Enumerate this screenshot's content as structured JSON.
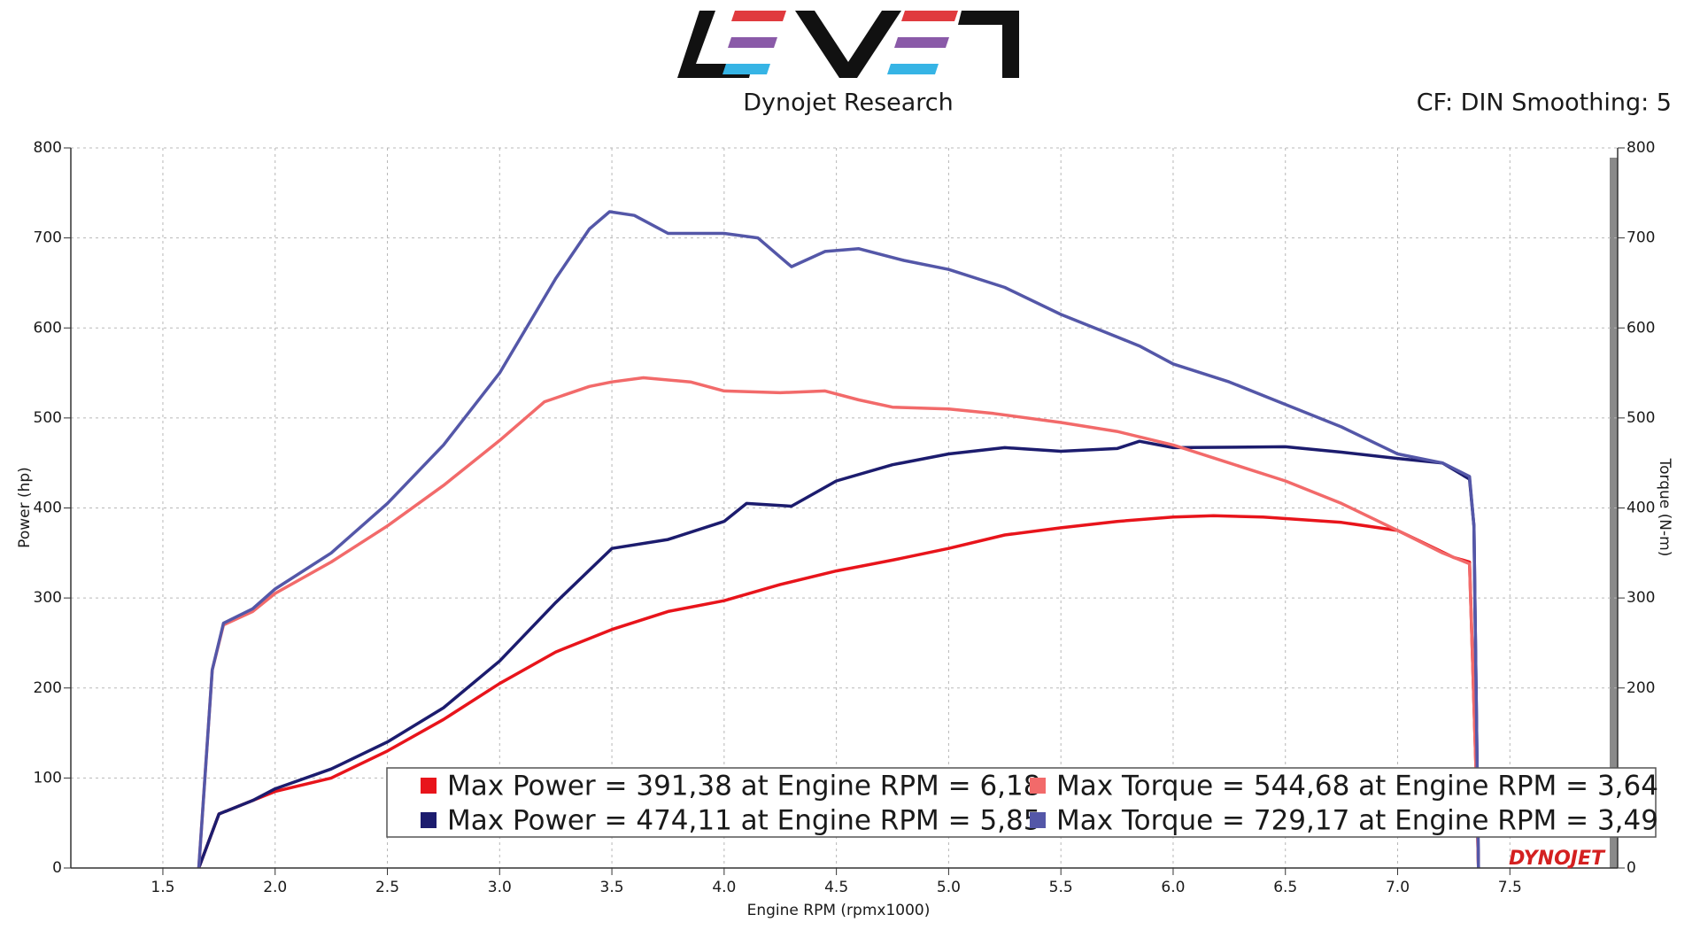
{
  "chart_data": {
    "type": "line",
    "title": "Dynojet Research",
    "subtitle": "CF: DIN Smoothing: 5",
    "watermark": "DYNOJET",
    "x_label": "Engine RPM (rpmx1000)",
    "y_label": "Power (hp)",
    "y2_label": "Torque (N-m)",
    "xlim": [
      1.09,
      7.98
    ],
    "ylim": [
      0,
      800
    ],
    "y2lim": [
      0,
      800
    ],
    "xticks": [
      1.5,
      {
        "value": 2,
        "label": "2.0"
      },
      2.5,
      {
        "value": 3,
        "label": "3.0"
      },
      3.5,
      {
        "value": 4,
        "label": "4.0"
      },
      4.5,
      {
        "value": 5,
        "label": "5.0"
      },
      5.5,
      {
        "value": 6,
        "label": "6.0"
      },
      6.5,
      {
        "value": 7,
        "label": "7.0"
      },
      7.5
    ],
    "yticks": [
      0,
      100,
      200,
      300,
      400,
      500,
      600,
      700,
      800
    ],
    "y2ticks": [
      0,
      100,
      200,
      300,
      400,
      500,
      600,
      700,
      800
    ],
    "grid": true,
    "series": [
      {
        "name": "Max Power = 391,38 at Engine RPM = 6,18",
        "color": "#e8141b",
        "x": [
          1.66,
          1.75,
          1.9,
          2.0,
          2.25,
          2.5,
          2.75,
          3.0,
          3.25,
          3.5,
          3.75,
          4.0,
          4.25,
          4.5,
          4.75,
          5.0,
          5.25,
          5.5,
          5.75,
          6.0,
          6.18,
          6.4,
          6.75,
          7.0,
          7.1,
          7.25,
          7.32,
          7.35,
          7.36
        ],
        "values": [
          0,
          60,
          75,
          85,
          100,
          130,
          165,
          205,
          240,
          265,
          285,
          297,
          315,
          330,
          342,
          355,
          370,
          378,
          385,
          390,
          391.38,
          390,
          384,
          375,
          363,
          345,
          340,
          100,
          0
        ]
      },
      {
        "name": "Max Power = 474,11 at Engine RPM = 5,85",
        "color": "#1c1c6e",
        "x": [
          1.66,
          1.75,
          1.9,
          2.0,
          2.25,
          2.5,
          2.75,
          3.0,
          3.25,
          3.5,
          3.75,
          4.0,
          4.1,
          4.3,
          4.5,
          4.75,
          5.0,
          5.25,
          5.5,
          5.75,
          5.85,
          6.0,
          6.5,
          6.75,
          7.0,
          7.2,
          7.32,
          7.34,
          7.36
        ],
        "values": [
          0,
          60,
          75,
          88,
          110,
          140,
          178,
          230,
          295,
          355,
          365,
          385,
          405,
          402,
          430,
          448,
          460,
          467,
          463,
          466,
          474.11,
          467,
          468,
          462,
          455,
          450,
          432,
          380,
          0
        ]
      },
      {
        "name": "Max Torque = 544,68 at Engine RPM = 3,64",
        "color": "#f26a6a",
        "axis": "y2",
        "x": [
          1.66,
          1.72,
          1.77,
          1.9,
          2.0,
          2.25,
          2.5,
          2.75,
          3.0,
          3.2,
          3.4,
          3.5,
          3.64,
          3.85,
          4.0,
          4.25,
          4.45,
          4.6,
          4.75,
          5.0,
          5.2,
          5.5,
          5.75,
          6.0,
          6.25,
          6.5,
          6.75,
          7.0,
          7.2,
          7.32,
          7.35,
          7.36
        ],
        "values": [
          0,
          220,
          270,
          285,
          305,
          340,
          380,
          425,
          475,
          518,
          535,
          540,
          544.68,
          540,
          530,
          528,
          530,
          520,
          512,
          510,
          505,
          495,
          485,
          470,
          450,
          430,
          405,
          375,
          350,
          338,
          100,
          0
        ]
      },
      {
        "name": "Max Torque = 729,17 at Engine RPM = 3,49",
        "color": "#5457a8",
        "axis": "y2",
        "x": [
          1.66,
          1.72,
          1.77,
          1.9,
          2.0,
          2.25,
          2.5,
          2.75,
          3.0,
          3.25,
          3.4,
          3.49,
          3.6,
          3.75,
          4.0,
          4.15,
          4.3,
          4.45,
          4.6,
          4.8,
          5.0,
          5.25,
          5.5,
          5.75,
          5.85,
          6.0,
          6.25,
          6.5,
          6.75,
          7.0,
          7.2,
          7.32,
          7.34,
          7.36
        ],
        "values": [
          0,
          220,
          272,
          288,
          310,
          350,
          405,
          470,
          550,
          655,
          710,
          729.17,
          725,
          705,
          705,
          700,
          668,
          685,
          688,
          675,
          665,
          645,
          615,
          590,
          580,
          560,
          540,
          515,
          490,
          460,
          450,
          435,
          380,
          0
        ]
      }
    ]
  }
}
